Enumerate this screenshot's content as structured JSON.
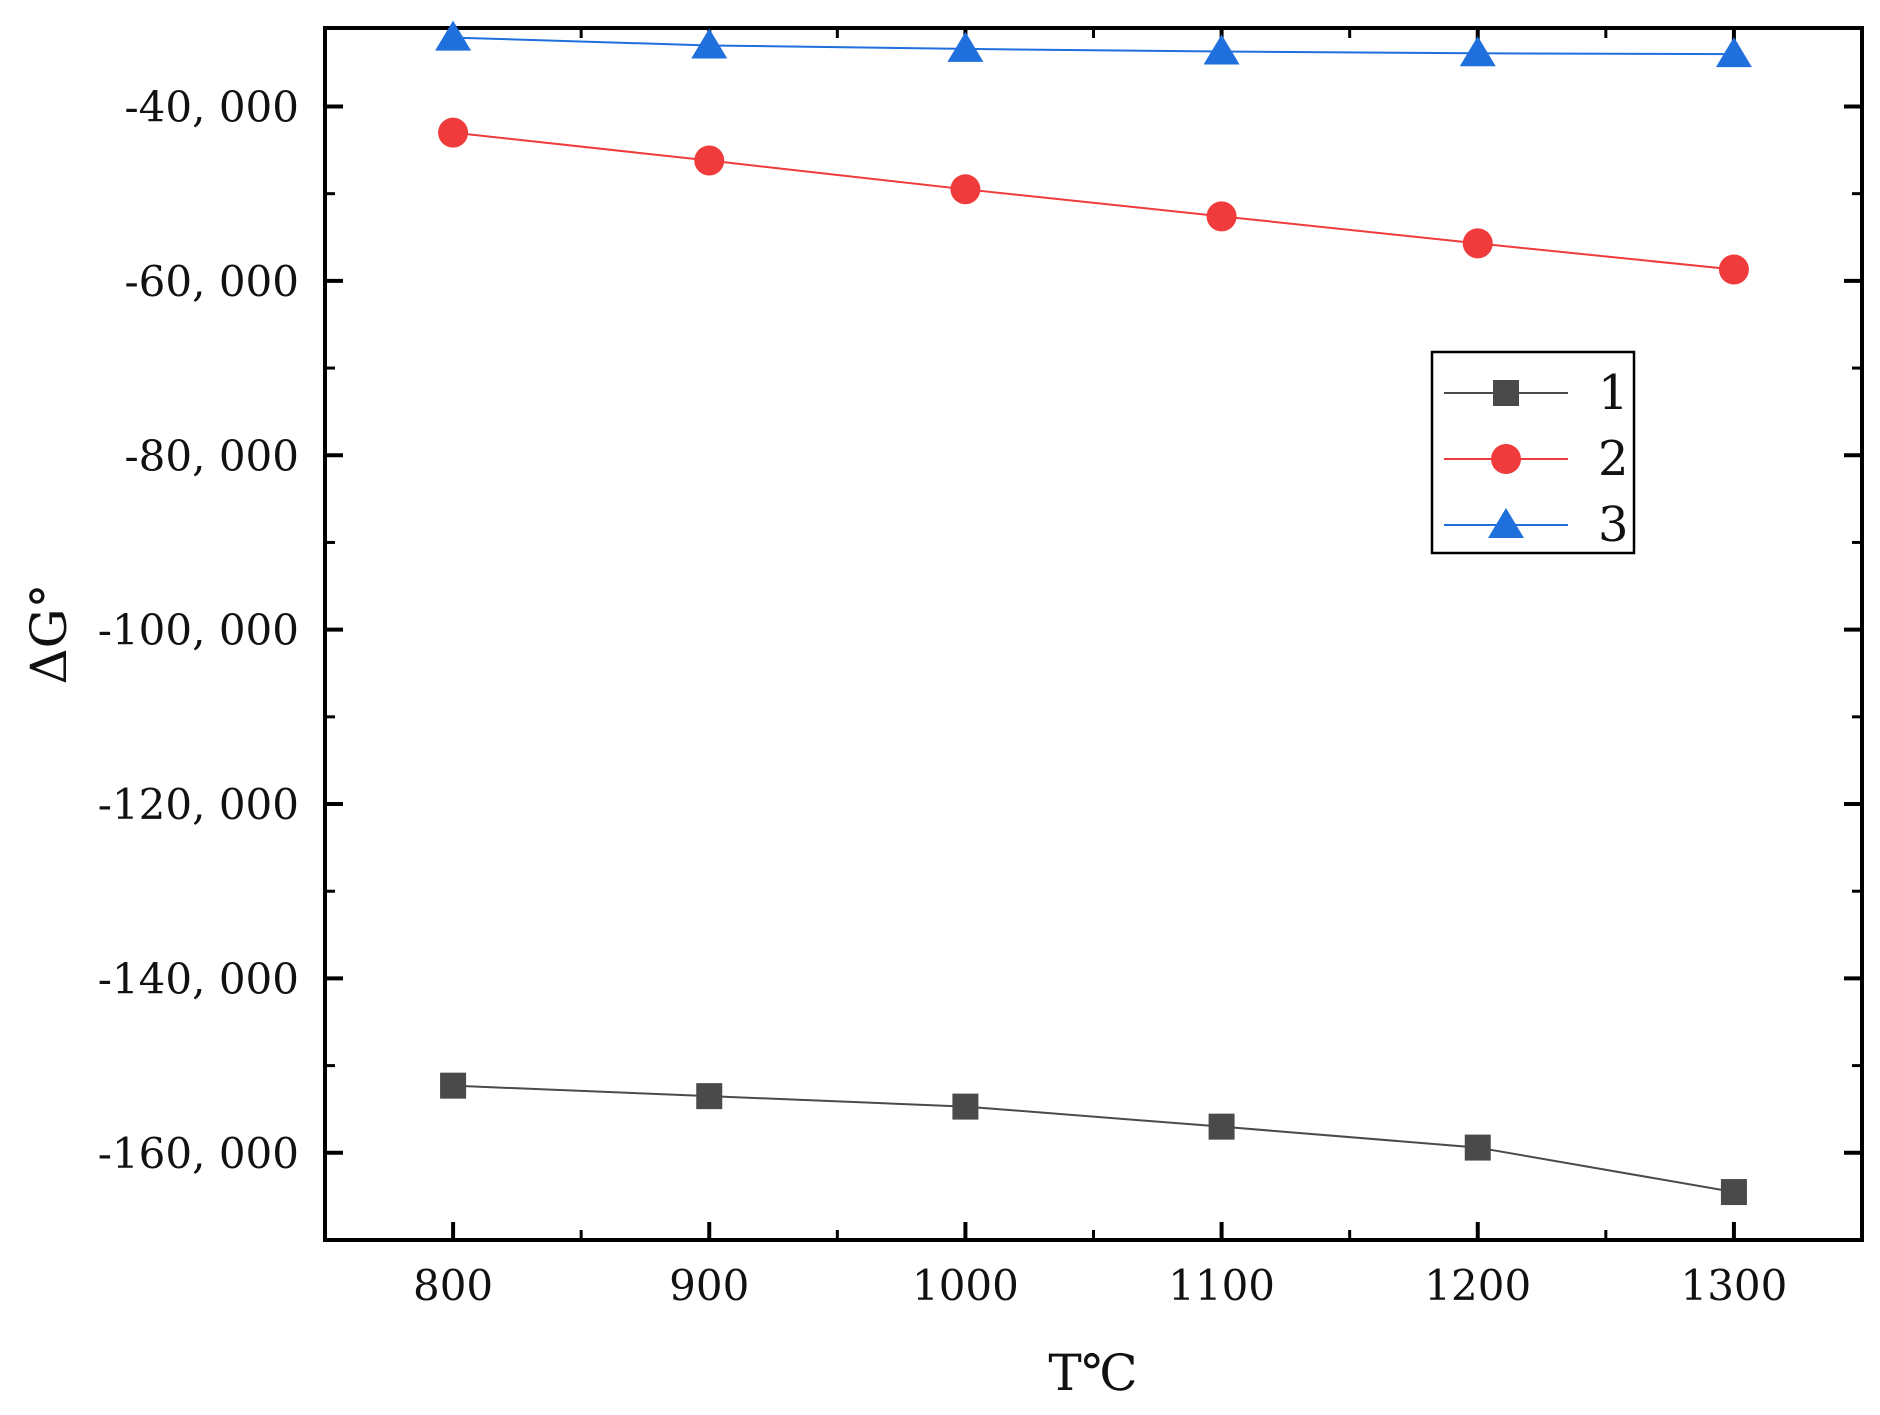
{
  "chart_data": {
    "type": "line",
    "title": "",
    "xlabel": "T℃",
    "ylabel": "ΔG°",
    "x": [
      800,
      900,
      1000,
      1100,
      1200,
      1300
    ],
    "xlim": [
      750,
      1350
    ],
    "ylim": [
      -170000,
      -31000
    ],
    "x_ticks": [
      800,
      900,
      1000,
      1100,
      1200,
      1300
    ],
    "x_tick_labels": [
      "800",
      "900",
      "1000",
      "1100",
      "1200",
      "1300"
    ],
    "y_ticks": [
      -40000,
      -60000,
      -80000,
      -100000,
      -120000,
      -140000,
      -160000
    ],
    "y_tick_labels": [
      "-40, 000",
      "-60, 000",
      "-80, 000",
      "-100, 000",
      "-120, 000",
      "-140, 000",
      "-160, 000"
    ],
    "grid": false,
    "legend_position": "right",
    "series": [
      {
        "name": "1",
        "marker": "square",
        "color": "#4a4a4a",
        "values": [
          -152300,
          -153500,
          -154700,
          -157000,
          -159400,
          -164500
        ]
      },
      {
        "name": "2",
        "marker": "circle",
        "color": "#ef3b3b",
        "values": [
          -43000,
          -46200,
          -49500,
          -52600,
          -55700,
          -58700
        ]
      },
      {
        "name": "3",
        "marker": "triangle",
        "color": "#1f6fdc",
        "values": [
          -32100,
          -33000,
          -33400,
          -33700,
          -33900,
          -34000
        ]
      }
    ]
  }
}
